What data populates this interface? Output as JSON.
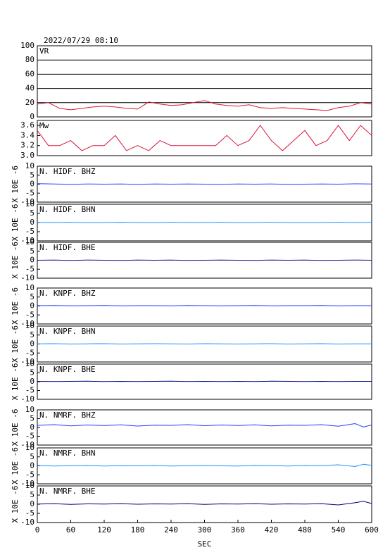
{
  "chart_data": [
    {
      "type": "line",
      "title": "2022/07/29  08:10",
      "label": "VR",
      "grid": true,
      "xlim": [
        0,
        600
      ],
      "ylim": [
        0,
        100
      ],
      "yticks": [
        0,
        20,
        40,
        60,
        80,
        100
      ],
      "x": [
        0,
        20,
        40,
        60,
        80,
        100,
        120,
        140,
        160,
        180,
        200,
        220,
        240,
        260,
        280,
        300,
        320,
        340,
        360,
        380,
        400,
        420,
        440,
        460,
        480,
        500,
        520,
        540,
        560,
        580,
        600
      ],
      "series": [
        {
          "color": "#dc143c",
          "values": [
            18,
            20,
            12,
            10,
            12,
            14,
            15,
            14,
            12,
            11,
            21,
            18,
            16,
            17,
            20,
            23,
            18,
            16,
            15,
            17,
            13,
            12,
            13,
            12,
            11,
            10,
            9,
            13,
            15,
            20,
            18
          ]
        }
      ]
    },
    {
      "type": "line",
      "label": "Mw",
      "grid": false,
      "xlim": [
        0,
        600
      ],
      "ylim": [
        3.0,
        3.7
      ],
      "yticks": [
        {
          "value": 3.0,
          "label": "3.0"
        },
        3.2,
        3.4,
        3.6
      ],
      "x": [
        0,
        20,
        40,
        60,
        80,
        100,
        120,
        140,
        160,
        180,
        200,
        220,
        240,
        260,
        280,
        300,
        320,
        340,
        360,
        380,
        400,
        420,
        440,
        460,
        480,
        500,
        520,
        540,
        560,
        580,
        600
      ],
      "series": [
        {
          "color": "#dc143c",
          "values": [
            3.5,
            3.2,
            3.2,
            3.3,
            3.1,
            3.2,
            3.2,
            3.4,
            3.1,
            3.2,
            3.1,
            3.3,
            3.2,
            3.2,
            3.2,
            3.2,
            3.2,
            3.4,
            3.2,
            3.3,
            3.6,
            3.3,
            3.1,
            3.3,
            3.5,
            3.2,
            3.3,
            3.6,
            3.3,
            3.6,
            3.4
          ]
        }
      ]
    },
    {
      "type": "line",
      "label": "N. HIDF. BHZ",
      "ylabel": "X 10E -6",
      "xlim": [
        0,
        600
      ],
      "ylim": [
        -10,
        10
      ],
      "yticks": [
        -10,
        -5,
        0,
        5,
        10
      ],
      "x": [
        0,
        30,
        60,
        90,
        120,
        150,
        180,
        210,
        240,
        270,
        300,
        330,
        360,
        390,
        420,
        450,
        480,
        510,
        540,
        570,
        600
      ],
      "series": [
        {
          "color": "#1e3cff",
          "values": [
            0.3,
            0.1,
            -0.1,
            0.1,
            0,
            0.1,
            -0.1,
            0.1,
            0,
            0.1,
            0,
            -0.1,
            0.1,
            0,
            0.1,
            -0.1,
            0,
            0.1,
            0,
            0.2,
            0.1
          ]
        }
      ]
    },
    {
      "type": "line",
      "label": "N. HIDF. BHN",
      "ylabel": "X 10E -6",
      "xlim": [
        0,
        600
      ],
      "ylim": [
        -10,
        10
      ],
      "yticks": [
        -10,
        -5,
        0,
        5,
        10
      ],
      "x": [
        0,
        30,
        60,
        90,
        120,
        150,
        180,
        210,
        240,
        270,
        300,
        330,
        360,
        390,
        420,
        450,
        480,
        510,
        540,
        570,
        600
      ],
      "series": [
        {
          "color": "#1e90ff",
          "values": [
            0.1,
            0,
            0.1,
            -0.1,
            0,
            0.1,
            0,
            -0.1,
            0.1,
            0,
            0,
            0.1,
            -0.1,
            0,
            0.1,
            0,
            -0.1,
            0,
            0.1,
            0,
            0.1
          ]
        }
      ]
    },
    {
      "type": "line",
      "label": "N. HIDF. BHE",
      "ylabel": "X 10E -6",
      "xlim": [
        0,
        600
      ],
      "ylim": [
        -10,
        10
      ],
      "yticks": [
        -10,
        -5,
        0,
        5,
        10
      ],
      "x": [
        0,
        30,
        60,
        90,
        120,
        150,
        180,
        210,
        240,
        270,
        300,
        330,
        360,
        390,
        420,
        450,
        480,
        510,
        540,
        570,
        600
      ],
      "series": [
        {
          "color": "#000080",
          "values": [
            0,
            0.1,
            -0.1,
            0.1,
            0,
            -0.1,
            0.1,
            0,
            0.1,
            -0.1,
            0,
            0.1,
            0,
            -0.1,
            0.1,
            0,
            0.1,
            -0.1,
            0,
            0.1,
            0
          ]
        }
      ]
    },
    {
      "type": "line",
      "label": "N. KNPF. BHZ",
      "ylabel": "X 10E -6",
      "xlim": [
        0,
        600
      ],
      "ylim": [
        -10,
        10
      ],
      "yticks": [
        -10,
        -5,
        0,
        5,
        10
      ],
      "x": [
        0,
        30,
        60,
        90,
        120,
        150,
        180,
        210,
        240,
        270,
        300,
        330,
        360,
        390,
        420,
        450,
        480,
        510,
        540,
        570,
        600
      ],
      "series": [
        {
          "color": "#1e3cff",
          "values": [
            0.2,
            0.3,
            0.1,
            0.2,
            0.3,
            0.1,
            0.2,
            0.2,
            0.1,
            0.3,
            0.2,
            0.1,
            0.2,
            0.3,
            0.1,
            0.2,
            0.2,
            0.3,
            0.1,
            0.2,
            0.2
          ]
        }
      ]
    },
    {
      "type": "line",
      "label": "N. KNPF. BHN",
      "ylabel": "X 10E -6",
      "xlim": [
        0,
        600
      ],
      "ylim": [
        -10,
        10
      ],
      "yticks": [
        -10,
        -5,
        0,
        5,
        10
      ],
      "x": [
        0,
        30,
        60,
        90,
        120,
        150,
        180,
        210,
        240,
        270,
        300,
        330,
        360,
        390,
        420,
        450,
        480,
        510,
        540,
        570,
        600
      ],
      "series": [
        {
          "color": "#1e90ff",
          "values": [
            0.1,
            0.2,
            0,
            0.1,
            0.2,
            0,
            0.1,
            0.2,
            0.1,
            0,
            0.2,
            0.1,
            0,
            0.1,
            0.2,
            0,
            0.1,
            0.2,
            0,
            0.1,
            0.1
          ]
        }
      ]
    },
    {
      "type": "line",
      "label": "N. KNPF. BHE",
      "ylabel": "X 10E -6",
      "xlim": [
        0,
        600
      ],
      "ylim": [
        -10,
        10
      ],
      "yticks": [
        -10,
        -5,
        0,
        5,
        10
      ],
      "x": [
        0,
        30,
        60,
        90,
        120,
        150,
        180,
        210,
        240,
        270,
        300,
        330,
        360,
        390,
        420,
        450,
        480,
        510,
        540,
        570,
        600
      ],
      "series": [
        {
          "color": "#000080",
          "values": [
            0.2,
            0.1,
            0.2,
            0.3,
            0.1,
            0.2,
            0.1,
            0.2,
            0.3,
            0.1,
            0.2,
            0.1,
            0.2,
            0.1,
            0.3,
            0.2,
            0.1,
            0.2,
            0.1,
            0.2,
            0.2
          ]
        }
      ]
    },
    {
      "type": "line",
      "label": "N. NMRF. BHZ",
      "ylabel": "X 10E -6",
      "xlim": [
        0,
        600
      ],
      "ylim": [
        -10,
        10
      ],
      "yticks": [
        -10,
        -5,
        0,
        5,
        10
      ],
      "x": [
        0,
        30,
        60,
        90,
        120,
        150,
        180,
        210,
        240,
        270,
        300,
        330,
        360,
        390,
        420,
        450,
        480,
        510,
        540,
        570,
        585,
        600
      ],
      "series": [
        {
          "color": "#1e3cff",
          "values": [
            1.2,
            1.6,
            0.9,
            1.4,
            1.1,
            1.5,
            0.8,
            1.3,
            1.2,
            1.6,
            1.0,
            1.4,
            1.1,
            1.5,
            0.9,
            1.3,
            1.2,
            1.6,
            0.7,
            2.2,
            0.3,
            1.4
          ]
        }
      ]
    },
    {
      "type": "line",
      "label": "N. NMRF. BHN",
      "ylabel": "X 10E -6",
      "xlim": [
        0,
        600
      ],
      "ylim": [
        -10,
        10
      ],
      "yticks": [
        -10,
        -5,
        0,
        5,
        10
      ],
      "x": [
        0,
        30,
        60,
        90,
        120,
        150,
        180,
        210,
        240,
        270,
        300,
        330,
        360,
        390,
        420,
        450,
        480,
        510,
        540,
        570,
        585,
        600
      ],
      "series": [
        {
          "color": "#1e90ff",
          "values": [
            0.2,
            -0.1,
            0.1,
            0.2,
            -0.1,
            0.1,
            0,
            0.2,
            -0.1,
            0.1,
            0.2,
            0,
            -0.1,
            0.2,
            0.1,
            -0.1,
            0.2,
            0.1,
            0.6,
            -0.4,
            0.9,
            0.3
          ]
        }
      ]
    },
    {
      "type": "line",
      "label": "N. NMRF. BHE",
      "ylabel": "X 10E -6",
      "xlabel": "SEC",
      "xlim": [
        0,
        600
      ],
      "ylim": [
        -10,
        10
      ],
      "yticks": [
        -10,
        -5,
        0,
        5,
        10
      ],
      "xticks": [
        0,
        60,
        120,
        180,
        240,
        300,
        360,
        420,
        480,
        540,
        600
      ],
      "x": [
        0,
        30,
        60,
        90,
        120,
        150,
        180,
        210,
        240,
        270,
        300,
        330,
        360,
        390,
        420,
        450,
        480,
        510,
        540,
        570,
        585,
        600
      ],
      "series": [
        {
          "color": "#000080",
          "values": [
            0.1,
            0.3,
            -0.1,
            0.2,
            0.1,
            0.3,
            0,
            0.2,
            0.1,
            0.3,
            -0.1,
            0.2,
            0.1,
            0.3,
            0,
            0.2,
            0.1,
            0.3,
            -0.4,
            0.8,
            1.6,
            0.4
          ]
        }
      ]
    }
  ]
}
